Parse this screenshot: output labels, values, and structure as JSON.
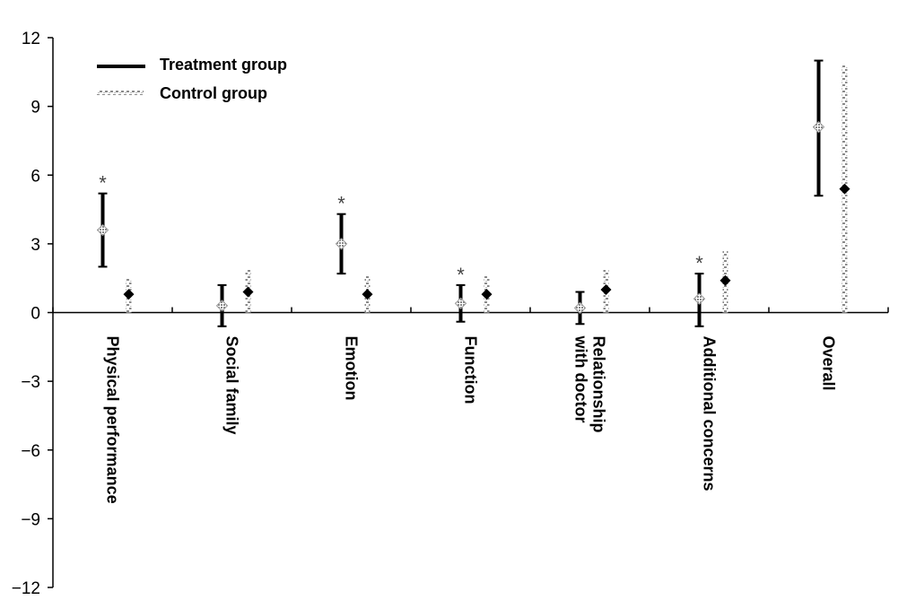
{
  "chart_data": {
    "type": "errorbar",
    "ylim": [
      -12,
      12
    ],
    "yticks": [
      12,
      9,
      6,
      3,
      0,
      -3,
      -6,
      -9,
      -12
    ],
    "ytick_labels": [
      "12",
      "9",
      "6",
      "3",
      "0",
      "−3",
      "−6",
      "−9",
      "−12"
    ],
    "categories": [
      [
        "Physical performance"
      ],
      [
        "Social family"
      ],
      [
        "Emotion"
      ],
      [
        "Function"
      ],
      [
        "Relationship",
        "with doctor"
      ],
      [
        "Additional concerns"
      ],
      [
        "Overall"
      ]
    ],
    "series": [
      {
        "name": "Treatment group",
        "means": [
          3.6,
          0.3,
          3.0,
          0.4,
          0.2,
          0.6,
          8.1
        ],
        "lower": [
          2.0,
          -0.6,
          1.7,
          -0.4,
          -0.5,
          -0.6,
          5.1
        ],
        "upper": [
          5.2,
          1.2,
          4.3,
          1.2,
          0.9,
          1.7,
          11.0
        ]
      },
      {
        "name": "Control group",
        "means": [
          0.8,
          0.9,
          0.8,
          0.8,
          1.0,
          1.4,
          5.4
        ],
        "lower": [
          0.0,
          0.0,
          0.0,
          0.0,
          0.0,
          0.0,
          0.0
        ],
        "upper": [
          1.5,
          1.9,
          1.6,
          1.6,
          1.9,
          2.7,
          10.8
        ]
      }
    ],
    "significant": [
      true,
      false,
      true,
      true,
      false,
      true,
      false
    ],
    "significance_marker": "*",
    "legend_position": "top-left"
  }
}
